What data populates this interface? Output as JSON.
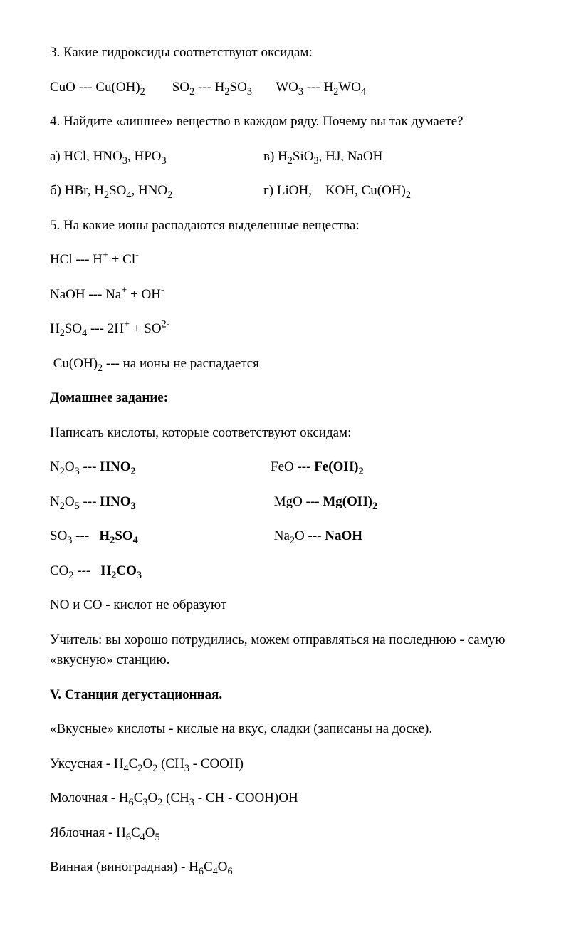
{
  "q3": {
    "title": "3. Какие гидроксиды соответствуют оксидам:",
    "line": "CuO --- Cu(OH)₂        SO₂ --- H₂SO₃       WO₃ --- H₂WO₄"
  },
  "q4": {
    "title": "4. Найдите «лишнее» вещество в каждом ряду. Почему вы так думаете?",
    "a_left": "а) HCl, HNO₃, HPO₃",
    "a_right": "в) H₂SiO₃, HJ, NaOH",
    "b_left": "б) HBr, H₂SO₄, HNO₂",
    "b_right": "г) LiOH,    KOH, Cu(OH)₂"
  },
  "q5": {
    "title": "5. На какие ионы распадаются выделенные вещества:",
    "l1": "HCl --- H⁺ + Cl⁻",
    "l2": "NaOH --- Na⁺ + OH⁻",
    "l3": "H₂SO₄ --- 2H⁺ + SO²⁻",
    "l4": " Cu(OH)₂ --- на ионы не распадается"
  },
  "hw": {
    "title": "Домашнее задание:",
    "intro": "Написать кислоты, которые соответствуют оксидам:",
    "r1_left_a": "N₂O₃ --- ",
    "r1_left_b": "HNO₂",
    "r1_right_a": "FeO --- ",
    "r1_right_b": "Fe(OH)₂",
    "r2_left_a": "N₂O₅ --- ",
    "r2_left_b": "HNO₃",
    "r2_right_a": "MgO --- ",
    "r2_right_b": "Mg(OH)₂",
    "r3_left_a": "SO₃ ---   ",
    "r3_left_b": "H₂SO₄",
    "r3_right_a": "Na₂O --- ",
    "r3_right_b": "NaOH",
    "r4_left_a": "CO₂ ---   ",
    "r4_left_b": "H₂CO₃",
    "note": "NO и CO - кислот не образуют"
  },
  "teacher": "Учитель: вы хорошо потрудились, можем отправляться на последнюю - самую «вкусную» станцию.",
  "station": {
    "title": "V. Станция дегустационная.",
    "intro": "«Вкусные» кислоты - кислые на вкус, сладки (записаны на доске).",
    "l1": "Уксусная - H₄C₂O₂ (CH₃ - COOH)",
    "l2": "Молочная - H₆C₃O₂ (CH₃ - CH - COOH)OH",
    "l3": "Яблочная - H₆C₄O₅",
    "l4": "Винная (виноградная) - H₆C₄O₆"
  }
}
